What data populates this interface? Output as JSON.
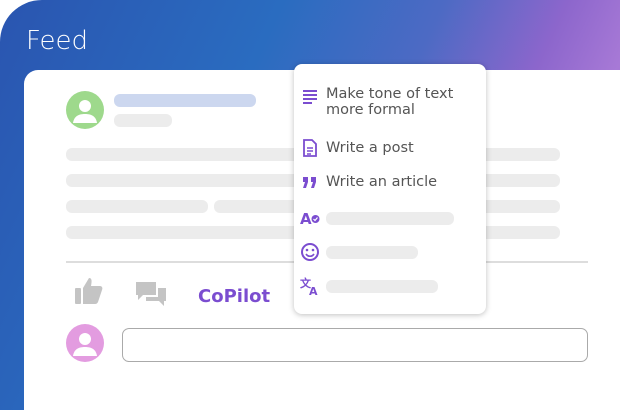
{
  "header": {
    "title": "Feed"
  },
  "colors": {
    "accent": "#7b4dd0",
    "avatar_author": "#9ed98c",
    "avatar_user": "#e39ce0"
  },
  "post": {
    "actions": {
      "like_icon": "thumbs-up-icon",
      "comment_icon": "comment-icon",
      "copilot_label": "CoPilot"
    },
    "comment_input": {
      "value": "",
      "placeholder": ""
    }
  },
  "copilot_menu": {
    "items": [
      {
        "icon": "text-lines-icon",
        "label": "Make tone of text more formal"
      },
      {
        "icon": "document-icon",
        "label": "Write a post"
      },
      {
        "icon": "quote-icon",
        "label": "Write an article"
      },
      {
        "icon": "spellcheck-icon",
        "label": ""
      },
      {
        "icon": "smiley-icon",
        "label": ""
      },
      {
        "icon": "translate-icon",
        "label": ""
      }
    ]
  }
}
